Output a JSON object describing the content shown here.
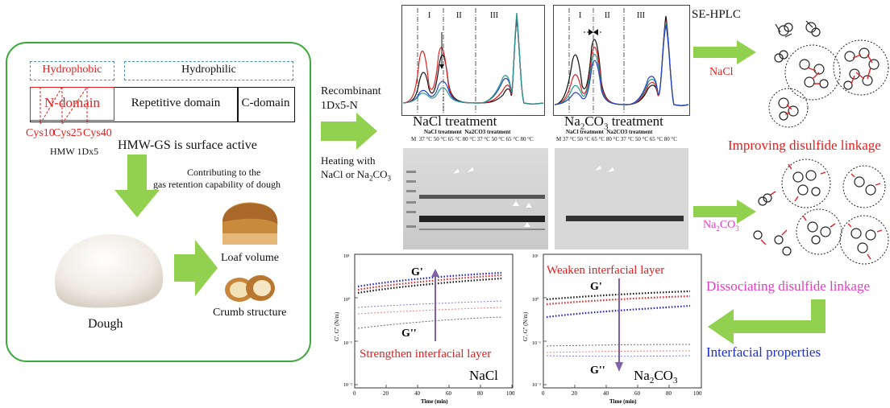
{
  "left_panel": {
    "hydrophobic": "Hydrophobic",
    "hydrophilic": "Hydrophilic",
    "n_domain": "N-domain",
    "repetitive_domain": "Repetitive domain",
    "c_domain": "C-domain",
    "cys10": "Cys10",
    "cys25": "Cys25",
    "cys40": "Cys40",
    "hmw_label": "HMW 1Dx5",
    "surface_active": "HMW-GS is surface active",
    "contributing_1": "Contributing to the",
    "contributing_2": "gas retention capability of dough",
    "dough": "Dough",
    "loaf_volume": "Loaf volume",
    "crumb_structure": "Crumb structure"
  },
  "middle": {
    "recombinant_1": "Recombinant",
    "recombinant_2": "1Dx5-N",
    "heating_1": "Heating with",
    "heating_2a": "NaCl or Na",
    "heating_2b": "2",
    "heating_2c": "CO",
    "heating_2d": "3",
    "se_hplc": "SE-HPLC",
    "nacl_treatment": "NaCl treatment",
    "na2co3_pre": "Na",
    "na2co3_sub1": "2",
    "na2co3_mid": "CO",
    "na2co3_sub2": "3",
    "na2co3_post": " treatment",
    "region_labels": [
      "I",
      "II",
      "III"
    ],
    "gel_lane_text": "37 °C  50 °C  65 °C  80 °C  37 °C  50 °C  65 °C  80 °C",
    "gel_group_nacl": "NaCl  treatment",
    "gel_group_na2co3": "Na2CO3  treatment",
    "gel_marker": "M"
  },
  "rheology_left": {
    "g_prime": "G'",
    "g_double": "G''",
    "caption": "Strengthen interfacial layer",
    "salt": "NaCl",
    "xlabel": "Time (min)",
    "ylabel": "G', G'' (N/m)",
    "xticks": [
      "0",
      "20",
      "40",
      "60",
      "80",
      "100"
    ],
    "yticks": [
      "10¹",
      "10⁰",
      "10⁻¹",
      "10⁻²"
    ]
  },
  "rheology_right": {
    "caption": "Weaken interfacial layer",
    "g_prime": "G'",
    "g_double": "G''",
    "salt_pre": "Na",
    "salt_sub1": "2",
    "salt_mid": "CO",
    "salt_sub2": "3",
    "xlabel": "Time (min)",
    "ylabel": "G', G'' (N/m)",
    "xticks": [
      "0",
      "20",
      "40",
      "60",
      "80",
      "100"
    ],
    "yticks": [
      "10¹",
      "10⁰",
      "10⁻¹",
      "10⁻²"
    ]
  },
  "right_panel": {
    "nacl": "NaCl",
    "improving": "Improving disulfide linkage",
    "na2co3_pre": "Na",
    "na2co3_sub1": "2",
    "na2co3_mid": "CO",
    "na2co3_sub2": "3",
    "dissociating": "Dissociating disulfide linkage",
    "interfacial": "Interfacial properties"
  },
  "colors": {
    "green_arrow": "#92d050",
    "red_text": "#e02020",
    "magenta_text": "#e040c0",
    "blue_text": "#1f2fd0",
    "panel_border": "#3aa83a",
    "hydro_border": "#4a90c8"
  }
}
